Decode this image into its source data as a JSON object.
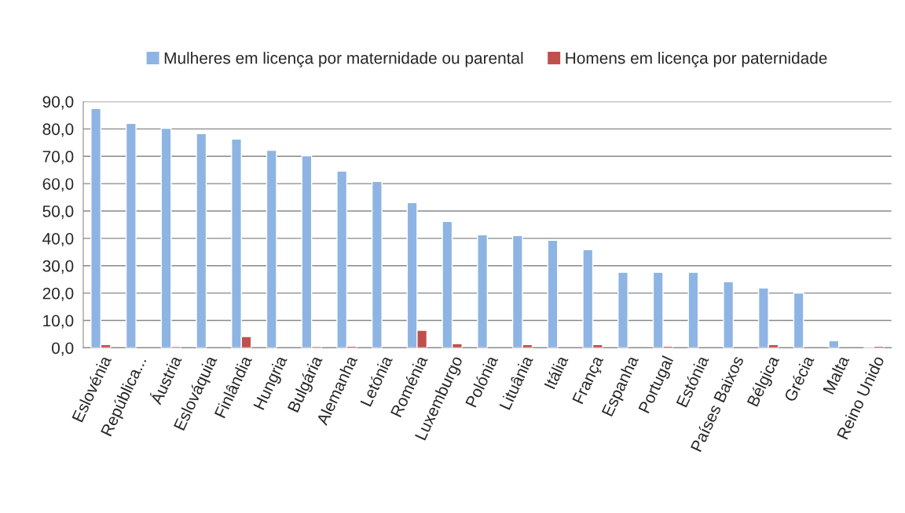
{
  "chart_data": {
    "type": "bar",
    "categories": [
      "Eslovénia",
      "República...",
      "Áustria",
      "Eslováquia",
      "Finlândia",
      "Hungria",
      "Bulgária",
      "Alemanha",
      "Letónia",
      "Roménia",
      "Luxemburgo",
      "Polónia",
      "Lituânia",
      "Itália",
      "França",
      "Espanha",
      "Portugal",
      "Estónia",
      "Países Baixos",
      "Bélgica",
      "Grécia",
      "Malta",
      "Reino Unido"
    ],
    "series": [
      {
        "name": "Mulheres em licença por maternidade ou parental",
        "color": "#8eb4e3",
        "values": [
          87.5,
          82.0,
          80.2,
          78.3,
          76.3,
          72.2,
          70.2,
          64.6,
          60.8,
          53.1,
          46.2,
          41.3,
          41.0,
          39.3,
          35.9,
          27.6,
          27.6,
          27.6,
          24.2,
          21.9,
          20.0,
          2.6,
          0.2
        ]
      },
      {
        "name": "Homens em licença por paternidade",
        "color": "#c0504d",
        "values": [
          1.2,
          null,
          0.5,
          null,
          4.1,
          null,
          0.5,
          0.6,
          null,
          6.4,
          1.5,
          null,
          1.2,
          null,
          1.2,
          null,
          0.6,
          null,
          null,
          1.2,
          null,
          null,
          0.6
        ]
      }
    ],
    "ylim": [
      0,
      90
    ],
    "yticks": [
      {
        "value": 0,
        "label": "0,0"
      },
      {
        "value": 10,
        "label": "10,0"
      },
      {
        "value": 20,
        "label": "20,0"
      },
      {
        "value": 30,
        "label": "30,0"
      },
      {
        "value": 40,
        "label": "40,0"
      },
      {
        "value": 50,
        "label": "50,0"
      },
      {
        "value": 60,
        "label": "60,0"
      },
      {
        "value": 70,
        "label": "70,0"
      },
      {
        "value": 80,
        "label": "80,0"
      },
      {
        "value": 90,
        "label": "90,0"
      }
    ],
    "grid": "y",
    "legend": "top"
  }
}
